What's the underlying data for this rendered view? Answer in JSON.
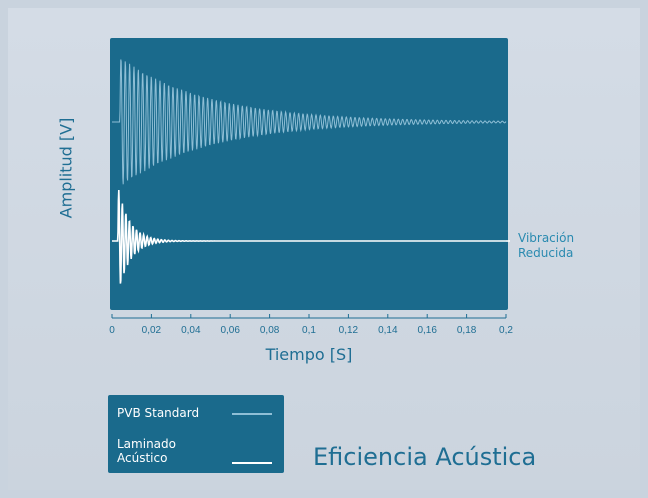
{
  "chart_data": {
    "type": "line",
    "title": "Eficiencia Acústica",
    "xlabel": "Tiempo [S]",
    "ylabel": "Amplitud [V]",
    "xlim": [
      0,
      0.2
    ],
    "x_ticks": [
      "0",
      "0,02",
      "0,04",
      "0,06",
      "0,08",
      "0,1",
      "0,12",
      "0,14",
      "0,16",
      "0,18",
      "0,2"
    ],
    "grid": false,
    "legend_position": "bottom-left",
    "annotation": [
      "Vibración",
      "Reducida"
    ],
    "series": [
      {
        "name": "PVB Standard",
        "color": "#8fbfd6",
        "onset": 0.004,
        "peak_amplitude": 1.0,
        "decay_time": 0.045,
        "settle": 0.19
      },
      {
        "name": "Laminado Acústico",
        "color": "#ffffff",
        "onset": 0.003,
        "peak_amplitude": 1.0,
        "decay_time": 0.006,
        "settle": 0.02
      }
    ]
  },
  "legend": {
    "items": [
      {
        "label": "PVB Standard"
      },
      {
        "label_lines": [
          "Laminado",
          "Acústico"
        ]
      }
    ]
  }
}
